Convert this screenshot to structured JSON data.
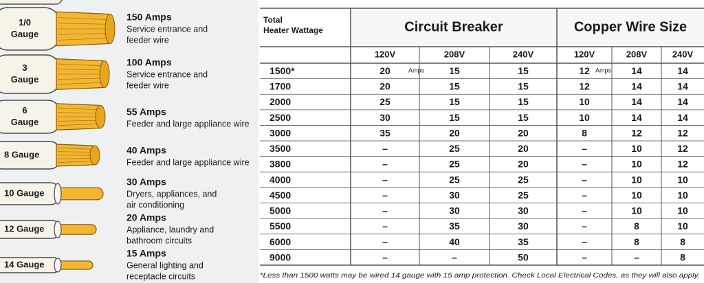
{
  "wires": [
    {
      "gauge": [
        "1/0",
        "Gauge"
      ],
      "amps": "150 Amps",
      "use": [
        "Service entrance and",
        "feeder wire"
      ]
    },
    {
      "gauge": [
        "3",
        "Gauge"
      ],
      "amps": "100 Amps",
      "use": [
        "Service entrance and",
        "feeder wire"
      ]
    },
    {
      "gauge": [
        "6",
        "Gauge"
      ],
      "amps": "55 Amps",
      "use": [
        "Feeder and large appliance wire"
      ]
    },
    {
      "gauge": [
        "8 Gauge"
      ],
      "amps": "40 Amps",
      "use": [
        "Feeder and large appliance wire"
      ]
    },
    {
      "gauge": [
        "10 Gauge"
      ],
      "amps": "30 Amps",
      "use": [
        "Dryers, appliances, and",
        "air conditioning"
      ]
    },
    {
      "gauge": [
        "12 Gauge"
      ],
      "amps": "20 Amps",
      "use": [
        "Appliance, laundry and",
        "bathroom circuits"
      ]
    },
    {
      "gauge": [
        "14 Gauge"
      ],
      "amps": "15 Amps",
      "use": [
        "General lighting and",
        "receptacle circuits"
      ]
    }
  ],
  "table": {
    "header": [
      "Total",
      "Heater Wattage"
    ],
    "groups": [
      "Circuit Breaker",
      "Copper Wire Size"
    ],
    "voltages": [
      "120V",
      "208V",
      "240V",
      "120V",
      "208V",
      "240V"
    ],
    "amps_notes": [
      "Amps",
      "Amps"
    ],
    "rows": [
      [
        "1500*",
        "20",
        "15",
        "15",
        "12",
        "14",
        "14"
      ],
      [
        "1700",
        "20",
        "15",
        "15",
        "12",
        "14",
        "14"
      ],
      [
        "2000",
        "25",
        "15",
        "15",
        "10",
        "14",
        "14"
      ],
      [
        "2500",
        "30",
        "15",
        "15",
        "10",
        "14",
        "14"
      ],
      [
        "3000",
        "35",
        "20",
        "20",
        "8",
        "12",
        "12"
      ],
      [
        "3500",
        "–",
        "25",
        "20",
        "–",
        "10",
        "12"
      ],
      [
        "3800",
        "–",
        "25",
        "20",
        "–",
        "10",
        "12"
      ],
      [
        "4000",
        "–",
        "25",
        "25",
        "–",
        "10",
        "10"
      ],
      [
        "4500",
        "–",
        "30",
        "25",
        "–",
        "10",
        "10"
      ],
      [
        "5000",
        "–",
        "30",
        "30",
        "–",
        "10",
        "10"
      ],
      [
        "5500",
        "–",
        "35",
        "30",
        "–",
        "8",
        "10"
      ],
      [
        "6000",
        "–",
        "40",
        "35",
        "–",
        "8",
        "8"
      ],
      [
        "9000",
        "–",
        "–",
        "50",
        "–",
        "–",
        "8"
      ]
    ],
    "footnote": "*Less than 1500 watts may be wired 14 gauge with 15 amp protection. Check Local Electrical Codes, as they will also apply."
  }
}
